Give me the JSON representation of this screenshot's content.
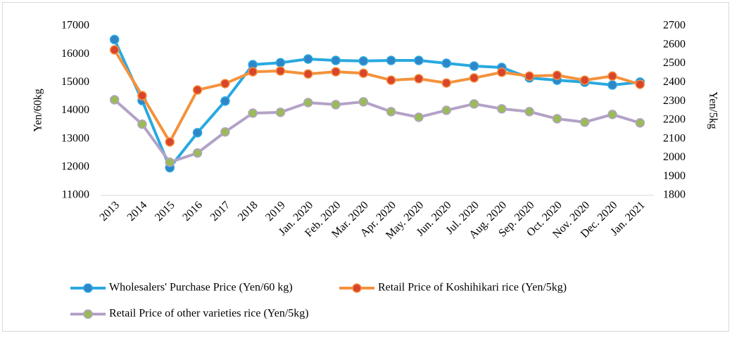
{
  "chart_data": {
    "type": "line",
    "y_label": "Yen/60kg",
    "y2_label": "Yen/5kg",
    "categories": [
      "2013",
      "2014",
      "2015",
      "2016",
      "2017",
      "2018",
      "2019",
      "Jan. 2020",
      "Feb. 2020",
      "Mar. 2020",
      "Apr. 2020",
      "May. 2020",
      "Jun. 2020",
      "Jul. 2020",
      "Aug. 2020",
      "Sep. 2020",
      "Oct. 2020",
      "Nov. 2020",
      "Dec. 2020",
      "Jan. 2021"
    ],
    "series": [
      {
        "name": "Wholesalers' Purchase Price (Yen/60 kg)",
        "color": "#29a9e0",
        "marker_color": "#2e86c9",
        "axis": "y",
        "values": [
          16520,
          14360,
          11980,
          13220,
          14340,
          15630,
          15700,
          15830,
          15780,
          15760,
          15780,
          15780,
          15680,
          15580,
          15530,
          15160,
          15080,
          15010,
          14910,
          15010
        ]
      },
      {
        "name": "Retail Price of Koshihikari rice (Yen/5kg)",
        "color": "#f4923c",
        "marker_color": "#d9442b",
        "axis": "y2",
        "values": [
          2573,
          2330,
          2084,
          2360,
          2394,
          2457,
          2461,
          2445,
          2457,
          2449,
          2412,
          2420,
          2397,
          2424,
          2454,
          2434,
          2438,
          2412,
          2434,
          2390
        ]
      },
      {
        "name": "Retail Price of other varieties rice (Yen/5kg)",
        "color": "#b3a2c7",
        "marker_color": "#9bbb59",
        "axis": "y2",
        "values": [
          2308,
          2178,
          1976,
          2025,
          2137,
          2237,
          2241,
          2293,
          2282,
          2297,
          2245,
          2215,
          2252,
          2286,
          2260,
          2245,
          2207,
          2189,
          2230,
          2185
        ]
      }
    ],
    "ylim": [
      11000,
      17000
    ],
    "yticks": [
      11000,
      12000,
      13000,
      14000,
      15000,
      16000,
      17000
    ],
    "y2lim": [
      1800,
      2700
    ],
    "y2ticks": [
      1800,
      1900,
      2000,
      2100,
      2200,
      2300,
      2400,
      2500,
      2600,
      2700
    ],
    "grid": false
  }
}
